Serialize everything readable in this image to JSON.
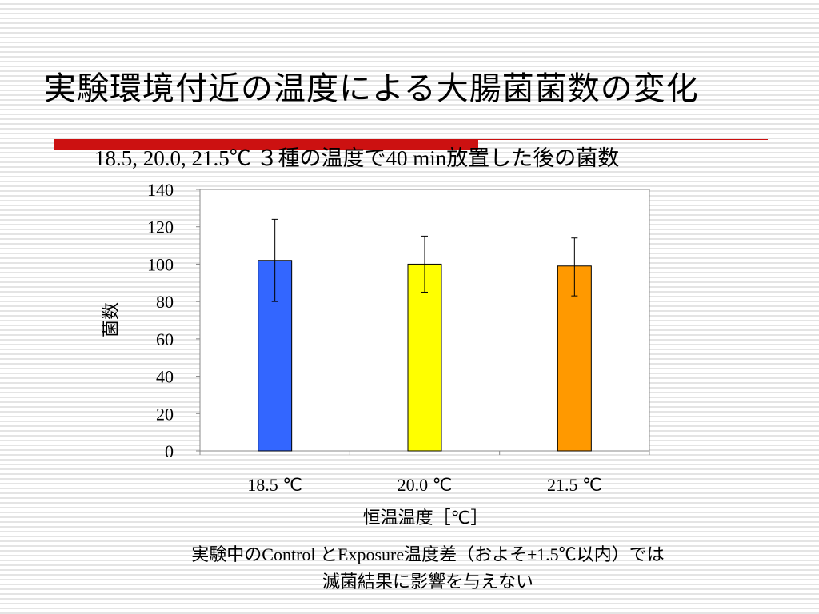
{
  "slide": {
    "title": "実験環境付近の温度による大腸菌菌数の変化",
    "subtitle": "18.5, 20.0, 21.5℃ ３種の温度で40 min放置した後の菌数",
    "note_line1": "実験中のControl とExposure温度差（およそ±1.5℃以内）では",
    "note_line2": "滅菌結果に影響を与えない"
  },
  "chart_data": {
    "type": "bar",
    "categories": [
      "18.5 ℃",
      "20.0 ℃",
      "21.5 ℃"
    ],
    "values": [
      102,
      100,
      99
    ],
    "error_low": [
      80,
      85,
      83
    ],
    "error_high": [
      124,
      115,
      114
    ],
    "colors": [
      "#3366ff",
      "#ffff00",
      "#ff9900"
    ],
    "xlabel": "恒温温度［℃］",
    "ylabel": "菌数",
    "ylim": [
      0,
      140
    ],
    "yticks": [
      "0",
      "20",
      "40",
      "60",
      "80",
      "100",
      "120",
      "140"
    ],
    "ytick_values": [
      0,
      20,
      40,
      60,
      80,
      100,
      120,
      140
    ],
    "grid": false
  }
}
